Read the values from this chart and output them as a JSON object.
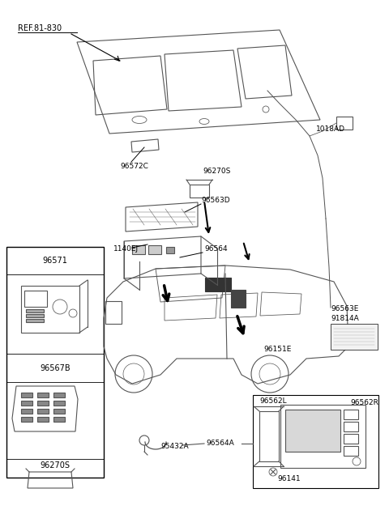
{
  "bg_color": "#ffffff",
  "line_color": "#555555",
  "labels": {
    "REF_81_830": "REF.81-830",
    "96572C": "96572C",
    "96270S_top": "96270S",
    "1018AD": "1018AD",
    "96563D": "96563D",
    "1140EJ": "1140EJ",
    "96564": "96564",
    "96571": "96571",
    "96567B": "96567B",
    "96270S_left": "96270S",
    "96563E": "96563E",
    "91814A": "91814A",
    "96151E": "96151E",
    "96562L": "96562L",
    "96562R": "96562R",
    "96141": "96141",
    "95432A": "95432A",
    "96564A": "96564A"
  }
}
